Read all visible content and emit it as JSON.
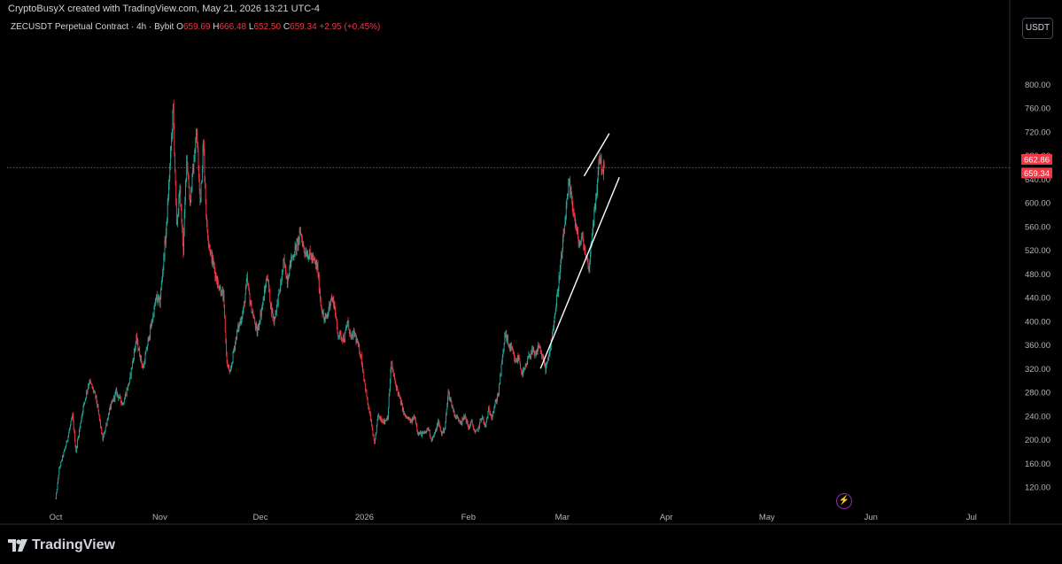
{
  "header": {
    "caption": "CryptoBusyX created with TradingView.com, May 21, 2026 13:21 UTC-4",
    "symbol": "ZECUSDT Perpetual Contract · 4h · Bybit",
    "open_label": "O",
    "open": "659.69",
    "high_label": "H",
    "high": "666.48",
    "low_label": "L",
    "low": "652.50",
    "close_label": "C",
    "close": "659.34",
    "change": "+2.95 (+0.45%)"
  },
  "currency_button": "USDT",
  "brand": {
    "name": "TradingView"
  },
  "colors": {
    "up": "#26a69a",
    "down": "#f23645",
    "price_line": "#f23645",
    "background": "#000000"
  },
  "icons": {
    "logo": "tradingview-logo-icon",
    "bolt": "lightning-icon"
  },
  "chart_data": {
    "type": "candlestick",
    "title": "ZECUSDT Perpetual Contract · 4h · Bybit",
    "xlabel": "",
    "ylabel": "",
    "ylim": [
      90,
      810
    ],
    "y_ticks": [
      "120.00",
      "160.00",
      "200.00",
      "240.00",
      "280.00",
      "320.00",
      "360.00",
      "400.00",
      "440.00",
      "480.00",
      "520.00",
      "560.00",
      "600.00",
      "640.00",
      "680.00",
      "720.00",
      "760.00",
      "800.00"
    ],
    "x_ticks": [
      {
        "label": "Oct",
        "day": 0
      },
      {
        "label": "Nov",
        "day": 31
      },
      {
        "label": "Dec",
        "day": 61
      },
      {
        "label": "2026",
        "day": 92
      },
      {
        "label": "Feb",
        "day": 123
      },
      {
        "label": "Mar",
        "day": 151
      },
      {
        "label": "Apr",
        "day": 182
      },
      {
        "label": "May",
        "day": 212
      },
      {
        "label": "Jun",
        "day": 243
      },
      {
        "label": "Jul",
        "day": 273
      }
    ],
    "start_date": "2025-10-01",
    "price_tags": [
      {
        "value": 662.86,
        "label": "662.86"
      },
      {
        "value": 659.34,
        "label": "659.34"
      }
    ],
    "current_price": 659.34,
    "close_path": [
      [
        0,
        100
      ],
      [
        1,
        150
      ],
      [
        3,
        190
      ],
      [
        5,
        240
      ],
      [
        6,
        180
      ],
      [
        8,
        250
      ],
      [
        10,
        300
      ],
      [
        12,
        270
      ],
      [
        14,
        200
      ],
      [
        16,
        250
      ],
      [
        18,
        280
      ],
      [
        20,
        260
      ],
      [
        22,
        300
      ],
      [
        24,
        370
      ],
      [
        26,
        320
      ],
      [
        28,
        380
      ],
      [
        30,
        440
      ],
      [
        31,
        430
      ],
      [
        33,
        560
      ],
      [
        35,
        760
      ],
      [
        36,
        560
      ],
      [
        37,
        620
      ],
      [
        38,
        520
      ],
      [
        39,
        680
      ],
      [
        40,
        600
      ],
      [
        42,
        720
      ],
      [
        43,
        600
      ],
      [
        44,
        700
      ],
      [
        45,
        560
      ],
      [
        46,
        520
      ],
      [
        48,
        470
      ],
      [
        50,
        440
      ],
      [
        51,
        330
      ],
      [
        52,
        310
      ],
      [
        53,
        350
      ],
      [
        54,
        380
      ],
      [
        56,
        420
      ],
      [
        57,
        470
      ],
      [
        58,
        430
      ],
      [
        60,
        380
      ],
      [
        62,
        440
      ],
      [
        63,
        480
      ],
      [
        64,
        430
      ],
      [
        65,
        400
      ],
      [
        67,
        460
      ],
      [
        68,
        500
      ],
      [
        69,
        470
      ],
      [
        70,
        500
      ],
      [
        72,
        530
      ],
      [
        73,
        550
      ],
      [
        74,
        520
      ],
      [
        76,
        510
      ],
      [
        78,
        490
      ],
      [
        79,
        430
      ],
      [
        80,
        400
      ],
      [
        81,
        410
      ],
      [
        82,
        440
      ],
      [
        83,
        430
      ],
      [
        84,
        380
      ],
      [
        86,
        370
      ],
      [
        87,
        400
      ],
      [
        88,
        370
      ],
      [
        89,
        380
      ],
      [
        90,
        360
      ],
      [
        91,
        340
      ],
      [
        92,
        300
      ],
      [
        93,
        260
      ],
      [
        94,
        230
      ],
      [
        95,
        190
      ],
      [
        96,
        240
      ],
      [
        98,
        230
      ],
      [
        99,
        240
      ],
      [
        100,
        330
      ],
      [
        101,
        300
      ],
      [
        102,
        280
      ],
      [
        103,
        260
      ],
      [
        104,
        240
      ],
      [
        106,
        230
      ],
      [
        107,
        240
      ],
      [
        108,
        210
      ],
      [
        110,
        210
      ],
      [
        111,
        220
      ],
      [
        112,
        200
      ],
      [
        113,
        210
      ],
      [
        114,
        230
      ],
      [
        115,
        210
      ],
      [
        116,
        220
      ],
      [
        117,
        280
      ],
      [
        118,
        260
      ],
      [
        119,
        240
      ],
      [
        121,
        230
      ],
      [
        122,
        240
      ],
      [
        123,
        220
      ],
      [
        124,
        230
      ],
      [
        125,
        210
      ],
      [
        126,
        220
      ],
      [
        127,
        240
      ],
      [
        128,
        220
      ],
      [
        129,
        250
      ],
      [
        130,
        240
      ],
      [
        131,
        260
      ],
      [
        132,
        280
      ],
      [
        133,
        330
      ],
      [
        134,
        380
      ],
      [
        135,
        360
      ],
      [
        136,
        350
      ],
      [
        137,
        330
      ],
      [
        138,
        340
      ],
      [
        139,
        310
      ],
      [
        140,
        320
      ],
      [
        141,
        340
      ],
      [
        142,
        350
      ],
      [
        143,
        340
      ],
      [
        144,
        360
      ],
      [
        145,
        340
      ],
      [
        146,
        320
      ],
      [
        147,
        340
      ],
      [
        148,
        380
      ],
      [
        149,
        420
      ],
      [
        150,
        470
      ],
      [
        151,
        520
      ],
      [
        152,
        580
      ],
      [
        153,
        630
      ],
      [
        154,
        600
      ],
      [
        155,
        560
      ],
      [
        156,
        530
      ],
      [
        157,
        540
      ],
      [
        158,
        510
      ],
      [
        159,
        490
      ],
      [
        160,
        560
      ],
      [
        161,
        600
      ],
      [
        162,
        680
      ],
      [
        163,
        655
      ],
      [
        163.5,
        659
      ]
    ],
    "annotations": [
      {
        "type": "trend-line",
        "from": {
          "day": 157.5,
          "value": 645
        },
        "to": {
          "day": 165,
          "value": 717
        }
      },
      {
        "type": "trend-line",
        "from": {
          "day": 144.5,
          "value": 320
        },
        "to": {
          "day": 168,
          "value": 643
        }
      }
    ],
    "grid": false,
    "legend": "none"
  }
}
